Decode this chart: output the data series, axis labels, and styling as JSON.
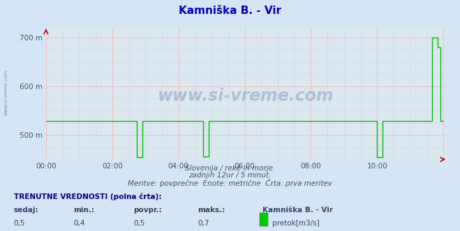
{
  "title": "Kamniška B. - Vir",
  "bg_color": "#d5e5f5",
  "plot_bg_color": "#dce8f0",
  "line_color": "#00bb00",
  "grid_color_major": "#ffaaaa",
  "grid_color_minor": "#c8d8e8",
  "ytick_labels": [
    "500 m",
    "600 m",
    "700 m"
  ],
  "ytick_values": [
    500,
    600,
    700
  ],
  "ylim": [
    450,
    720
  ],
  "xlim": [
    0,
    145
  ],
  "xtick_positions": [
    0,
    24,
    48,
    72,
    96,
    120,
    144
  ],
  "xtick_labels": [
    "00:00",
    "02:00",
    "04:00",
    "06:00",
    "08:00",
    "10:00",
    ""
  ],
  "watermark_text": "www.si-vreme.com",
  "left_label": "www.si-vreme.com",
  "subtitle1": "Slovenija / reke in morje.",
  "subtitle2": "zadnjih 12ur / 5 minut.",
  "subtitle3": "Meritve: povprečne  Enote: metrične  Črta: prva meritev",
  "label_trenutne": "TRENUTNE VREDNOSTI (polna črta):",
  "label_sedaj": "sedaj:",
  "label_min": "min.:",
  "label_povpr": "povpr.:",
  "label_maks": "maks.:",
  "label_station": "Kamniška B. - Vir",
  "val_sedaj": "0,5",
  "val_min": "0,4",
  "val_povpr": "0,5",
  "val_maks": "0,7",
  "legend_label": "pretok[m3/s]",
  "legend_color": "#00cc00",
  "data_x": [
    0,
    1,
    2,
    3,
    4,
    5,
    6,
    7,
    8,
    9,
    10,
    11,
    12,
    13,
    14,
    15,
    16,
    17,
    18,
    19,
    20,
    21,
    22,
    23,
    24,
    25,
    26,
    27,
    28,
    29,
    30,
    31,
    32,
    33,
    34,
    35,
    36,
    37,
    38,
    39,
    40,
    41,
    42,
    43,
    44,
    45,
    46,
    47,
    48,
    49,
    50,
    51,
    52,
    53,
    54,
    55,
    56,
    57,
    58,
    59,
    60,
    61,
    62,
    63,
    64,
    65,
    66,
    67,
    68,
    69,
    70,
    71,
    72,
    73,
    74,
    75,
    76,
    77,
    78,
    79,
    80,
    81,
    82,
    83,
    84,
    85,
    86,
    87,
    88,
    89,
    90,
    91,
    92,
    93,
    94,
    95,
    96,
    97,
    98,
    99,
    100,
    101,
    102,
    103,
    104,
    105,
    106,
    107,
    108,
    109,
    110,
    111,
    112,
    113,
    114,
    115,
    116,
    117,
    118,
    119,
    120,
    121,
    122,
    123,
    124,
    125,
    126,
    127,
    128,
    129,
    130,
    131,
    132,
    133,
    134,
    135,
    136,
    137,
    138,
    139,
    140,
    141,
    142,
    143,
    144
  ],
  "data_y": [
    528,
    528,
    528,
    528,
    528,
    528,
    528,
    528,
    528,
    528,
    528,
    528,
    528,
    528,
    528,
    528,
    528,
    528,
    528,
    528,
    528,
    528,
    528,
    528,
    528,
    528,
    528,
    528,
    528,
    528,
    528,
    528,
    528,
    454,
    454,
    528,
    528,
    528,
    528,
    528,
    528,
    528,
    528,
    528,
    528,
    528,
    528,
    528,
    528,
    528,
    528,
    528,
    528,
    528,
    528,
    528,
    528,
    456,
    456,
    528,
    528,
    528,
    528,
    528,
    528,
    528,
    528,
    528,
    528,
    528,
    528,
    528,
    528,
    528,
    528,
    528,
    528,
    528,
    528,
    528,
    528,
    528,
    528,
    528,
    528,
    528,
    528,
    528,
    528,
    528,
    528,
    528,
    528,
    528,
    528,
    528,
    528,
    528,
    528,
    528,
    528,
    528,
    528,
    528,
    528,
    528,
    528,
    528,
    528,
    528,
    528,
    528,
    528,
    528,
    528,
    528,
    528,
    528,
    528,
    528,
    454,
    454,
    528,
    528,
    528,
    528,
    528,
    528,
    528,
    528,
    528,
    528,
    528,
    528,
    528,
    528,
    528,
    528,
    528,
    528,
    700,
    700,
    680,
    528,
    528
  ]
}
